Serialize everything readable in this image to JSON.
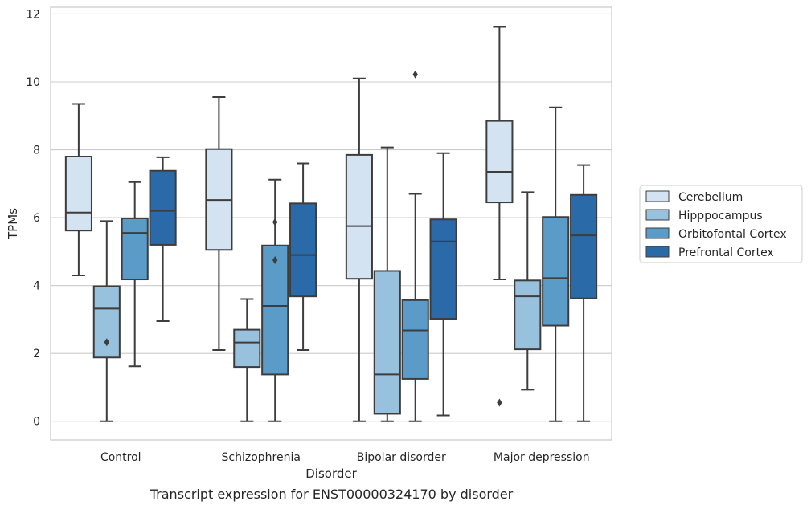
{
  "chart_data": {
    "type": "boxplot",
    "xlabel": "Disorder",
    "ylabel": "TPMs",
    "caption": "Transcript expression for ENST00000324170 by disorder",
    "ylim": [
      -0.55,
      12.2
    ],
    "yticks": [
      0,
      2,
      4,
      6,
      8,
      10,
      12
    ],
    "grid": "horizontal",
    "legend_position": "right",
    "categories": [
      "Control",
      "Schizophrenia",
      "Bipolar disorder",
      "Major depression"
    ],
    "series": [
      {
        "name": "Cerebellum",
        "color": "#d3e3f2",
        "boxes": [
          {
            "whislo": 4.3,
            "q1": 5.62,
            "med": 6.15,
            "q3": 7.8,
            "whishi": 9.35,
            "fliers": []
          },
          {
            "whislo": 2.1,
            "q1": 5.05,
            "med": 6.52,
            "q3": 8.02,
            "whishi": 9.55,
            "fliers": []
          },
          {
            "whislo": 0.0,
            "q1": 4.2,
            "med": 5.75,
            "q3": 7.85,
            "whishi": 10.1,
            "fliers": []
          },
          {
            "whislo": 4.18,
            "q1": 6.45,
            "med": 7.35,
            "q3": 8.85,
            "whishi": 11.62,
            "fliers": [
              0.55
            ]
          }
        ]
      },
      {
        "name": "Hipppocampus",
        "color": "#98c1dd",
        "boxes": [
          {
            "whislo": 0.0,
            "q1": 1.88,
            "med": 3.32,
            "q3": 3.98,
            "whishi": 5.9,
            "fliers": [
              2.33
            ]
          },
          {
            "whislo": 0.0,
            "q1": 1.6,
            "med": 2.32,
            "q3": 2.7,
            "whishi": 3.6,
            "fliers": []
          },
          {
            "whislo": 0.0,
            "q1": 0.22,
            "med": 1.38,
            "q3": 4.43,
            "whishi": 8.07,
            "fliers": []
          },
          {
            "whislo": 0.93,
            "q1": 2.12,
            "med": 3.68,
            "q3": 4.15,
            "whishi": 6.75,
            "fliers": []
          }
        ]
      },
      {
        "name": "Orbitofontal Cortex",
        "color": "#5a9bc8",
        "boxes": [
          {
            "whislo": 1.62,
            "q1": 4.18,
            "med": 5.55,
            "q3": 5.98,
            "whishi": 7.05,
            "fliers": []
          },
          {
            "whislo": 0.0,
            "q1": 1.38,
            "med": 3.4,
            "q3": 5.18,
            "whishi": 7.12,
            "fliers": [
              5.87,
              4.75
            ]
          },
          {
            "whislo": 0.0,
            "q1": 1.25,
            "med": 2.68,
            "q3": 3.57,
            "whishi": 6.7,
            "fliers": [
              10.22
            ]
          },
          {
            "whislo": 0.0,
            "q1": 2.82,
            "med": 4.22,
            "q3": 6.02,
            "whishi": 9.25,
            "fliers": []
          }
        ]
      },
      {
        "name": "Prefrontal Cortex",
        "color": "#2b6aa8",
        "boxes": [
          {
            "whislo": 2.95,
            "q1": 5.2,
            "med": 6.2,
            "q3": 7.38,
            "whishi": 7.78,
            "fliers": []
          },
          {
            "whislo": 2.1,
            "q1": 3.68,
            "med": 4.9,
            "q3": 6.42,
            "whishi": 7.6,
            "fliers": []
          },
          {
            "whislo": 0.17,
            "q1": 3.02,
            "med": 5.3,
            "q3": 5.95,
            "whishi": 7.9,
            "fliers": []
          },
          {
            "whislo": 0.0,
            "q1": 3.62,
            "med": 5.48,
            "q3": 6.67,
            "whishi": 7.55,
            "fliers": []
          }
        ]
      }
    ]
  }
}
